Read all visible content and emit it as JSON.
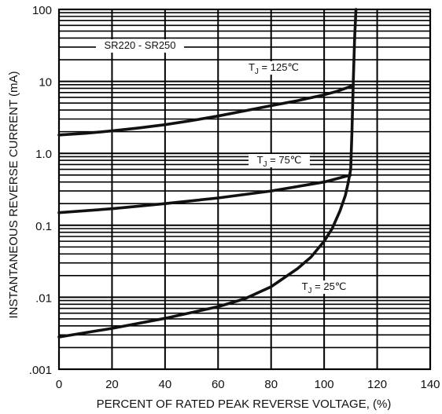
{
  "chart_data": {
    "type": "line",
    "title": "",
    "xlabel": "PERCENT OF RATED PEAK REVERSE VOLTAGE, (%)",
    "ylabel": "INSTANTANEOUS REVERSE CURRENT (mA)",
    "xlim": [
      0,
      140
    ],
    "ylim": [
      0.001,
      100
    ],
    "yscale": "log",
    "grid": true,
    "x_ticks": [
      0,
      20,
      40,
      60,
      80,
      100,
      120,
      140
    ],
    "x_tick_labels": [
      "0",
      "20",
      "40",
      "60",
      "80",
      "100",
      "120",
      "140"
    ],
    "y_ticks": [
      0.001,
      0.01,
      0.1,
      1,
      10,
      100
    ],
    "y_tick_labels": [
      ".001",
      ".01",
      "0.1",
      "1.0",
      "10",
      "100"
    ],
    "annotations": [
      {
        "text": "SR220 - SR250"
      },
      {
        "text": "T",
        "sub": "J",
        "rest": " = 125℃"
      },
      {
        "text": "T",
        "sub": "J",
        "rest": " = 75℃"
      },
      {
        "text": "T",
        "sub": "J",
        "rest": " = 25℃"
      }
    ],
    "series": [
      {
        "name": "TJ = 125℃",
        "x": [
          0,
          10,
          20,
          30,
          40,
          50,
          60,
          70,
          80,
          90,
          100,
          105,
          110
        ],
        "y": [
          1.8,
          1.9,
          2.05,
          2.25,
          2.5,
          2.85,
          3.3,
          3.9,
          4.6,
          5.4,
          6.5,
          7.3,
          8.5
        ]
      },
      {
        "name": "TJ = 75℃",
        "x": [
          0,
          20,
          40,
          60,
          80,
          100,
          110
        ],
        "y": [
          0.15,
          0.17,
          0.2,
          0.24,
          0.3,
          0.4,
          0.5
        ]
      },
      {
        "name": "TJ = 25℃",
        "x": [
          0,
          20,
          40,
          60,
          70,
          80,
          90,
          95,
          100,
          103,
          106,
          108,
          109,
          110,
          110.5,
          111,
          111.5,
          112
        ],
        "y": [
          0.0028,
          0.0037,
          0.0051,
          0.0074,
          0.0095,
          0.014,
          0.025,
          0.036,
          0.06,
          0.09,
          0.16,
          0.26,
          0.38,
          0.6,
          2,
          10,
          40,
          100
        ]
      }
    ]
  }
}
